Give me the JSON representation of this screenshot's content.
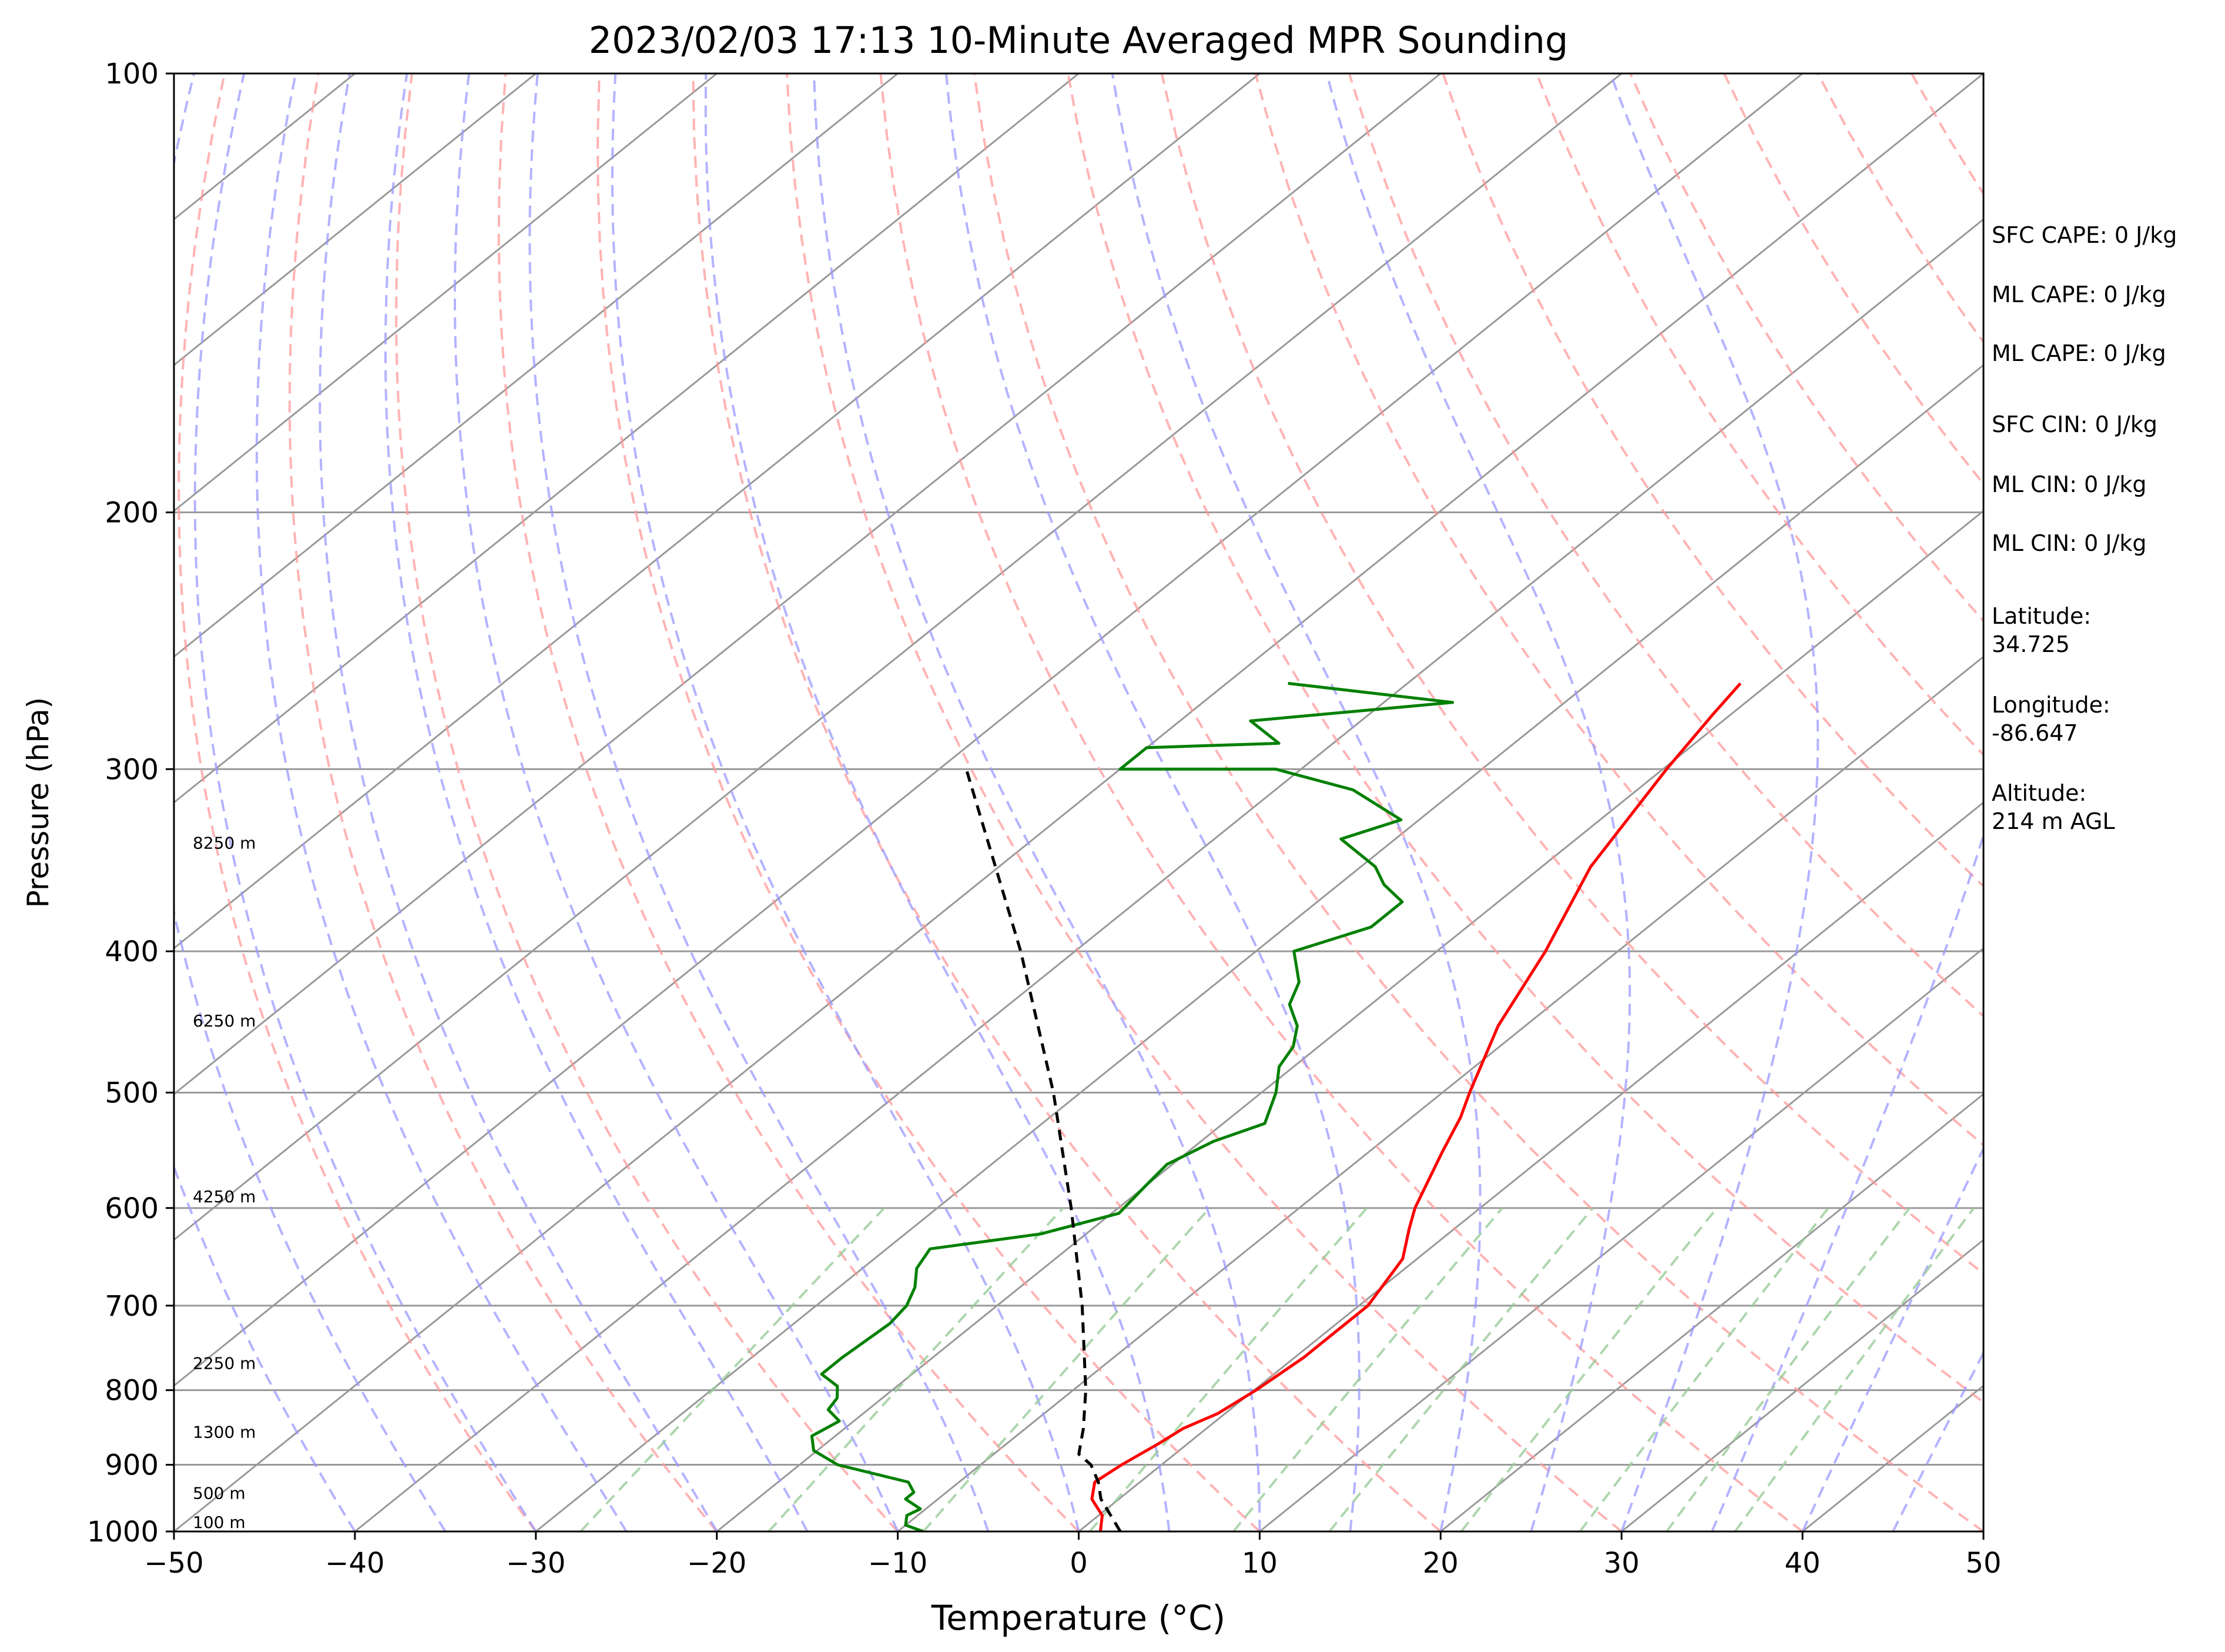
{
  "chart_data": {
    "type": "skew-t",
    "title": "2023/02/03 17:13 10-Minute Averaged MPR Sounding",
    "xlabel": "Temperature (°C)",
    "ylabel": "Pressure (hPa)",
    "xlim": [
      -50,
      50
    ],
    "ylim": [
      1000,
      100
    ],
    "y_scale": "log",
    "x_ticks": [
      -50,
      -40,
      -30,
      -20,
      -10,
      0,
      10,
      20,
      30,
      40,
      50
    ],
    "x_tick_labels": [
      "−50",
      "−40",
      "−30",
      "−20",
      "−10",
      "0",
      "10",
      "20",
      "30",
      "40",
      "50"
    ],
    "y_ticks": [
      100,
      200,
      300,
      400,
      500,
      600,
      700,
      800,
      900,
      1000
    ],
    "y_tick_labels": [
      "100",
      "200",
      "300",
      "400",
      "500",
      "600",
      "700",
      "800",
      "900",
      "1000"
    ],
    "grid": true,
    "colors": {
      "temperature": "#ff0000",
      "dewpoint": "#008000",
      "parcel": "#000000",
      "dry_adiabats": "#ff9999",
      "moist_adiabats": "#9999ff",
      "mixing_ratio": "#99cc99",
      "isotherms": "#999999"
    },
    "series": [
      {
        "kind": "temperature",
        "points": [
          {
            "p": 1000,
            "t": 1.2
          },
          {
            "p": 975,
            "t": 0.2
          },
          {
            "p": 950,
            "t": -1.5
          },
          {
            "p": 925,
            "t": -2.5
          },
          {
            "p": 900,
            "t": -2.2
          },
          {
            "p": 870,
            "t": -1.6
          },
          {
            "p": 850,
            "t": -1.3
          },
          {
            "p": 830,
            "t": -0.4
          },
          {
            "p": 800,
            "t": 0.1
          },
          {
            "p": 760,
            "t": 0.5
          },
          {
            "p": 730,
            "t": 0.5
          },
          {
            "p": 700,
            "t": 0.5
          },
          {
            "p": 650,
            "t": -0.8
          },
          {
            "p": 620,
            "t": -2.5
          },
          {
            "p": 600,
            "t": -3.6
          },
          {
            "p": 550,
            "t": -5.9
          },
          {
            "p": 520,
            "t": -7.3
          },
          {
            "p": 500,
            "t": -8.5
          },
          {
            "p": 450,
            "t": -11.5
          },
          {
            "p": 400,
            "t": -14.0
          },
          {
            "p": 350,
            "t": -17.3
          },
          {
            "p": 300,
            "t": -19.8
          },
          {
            "p": 275,
            "t": -21.0
          },
          {
            "p": 262,
            "t": -21.6
          }
        ]
      },
      {
        "kind": "dewpoint",
        "points": [
          {
            "p": 1000,
            "t": -8.6
          },
          {
            "p": 990,
            "t": -10.0
          },
          {
            "p": 975,
            "t": -10.6
          },
          {
            "p": 965,
            "t": -10.3
          },
          {
            "p": 950,
            "t": -11.8
          },
          {
            "p": 940,
            "t": -11.8
          },
          {
            "p": 925,
            "t": -12.8
          },
          {
            "p": 900,
            "t": -17.9
          },
          {
            "p": 880,
            "t": -20.2
          },
          {
            "p": 860,
            "t": -21.3
          },
          {
            "p": 840,
            "t": -20.8
          },
          {
            "p": 825,
            "t": -22.2
          },
          {
            "p": 810,
            "t": -22.5
          },
          {
            "p": 795,
            "t": -23.3
          },
          {
            "p": 780,
            "t": -25.0
          },
          {
            "p": 760,
            "t": -25.0
          },
          {
            "p": 720,
            "t": -24.7
          },
          {
            "p": 700,
            "t": -25.0
          },
          {
            "p": 680,
            "t": -25.8
          },
          {
            "p": 660,
            "t": -27.0
          },
          {
            "p": 640,
            "t": -27.6
          },
          {
            "p": 625,
            "t": -22.5
          },
          {
            "p": 605,
            "t": -19.6
          },
          {
            "p": 580,
            "t": -20.0
          },
          {
            "p": 560,
            "t": -20.3
          },
          {
            "p": 540,
            "t": -19.3
          },
          {
            "p": 525,
            "t": -17.7
          },
          {
            "p": 500,
            "t": -19.2
          },
          {
            "p": 480,
            "t": -20.8
          },
          {
            "p": 465,
            "t": -21.4
          },
          {
            "p": 450,
            "t": -22.6
          },
          {
            "p": 435,
            "t": -24.5
          },
          {
            "p": 420,
            "t": -25.5
          },
          {
            "p": 400,
            "t": -27.9
          },
          {
            "p": 385,
            "t": -25.3
          },
          {
            "p": 370,
            "t": -25.3
          },
          {
            "p": 360,
            "t": -27.5
          },
          {
            "p": 350,
            "t": -29.2
          },
          {
            "p": 335,
            "t": -33.0
          },
          {
            "p": 325,
            "t": -31.0
          },
          {
            "p": 310,
            "t": -35.7
          },
          {
            "p": 300,
            "t": -41.4
          },
          {
            "p": 300,
            "t": -50.0
          },
          {
            "p": 290,
            "t": -50.0
          },
          {
            "p": 288,
            "t": -43.0
          },
          {
            "p": 278,
            "t": -46.1
          },
          {
            "p": 270,
            "t": -36.2
          },
          {
            "p": 262,
            "t": -46.6
          }
        ]
      },
      {
        "kind": "parcel",
        "points": [
          {
            "p": 1000,
            "t": 2.3
          },
          {
            "p": 950,
            "t": -1.0
          },
          {
            "p": 925,
            "t": -2.3
          },
          {
            "p": 900,
            "t": -3.9
          },
          {
            "p": 885,
            "t": -5.3
          },
          {
            "p": 850,
            "t": -6.8
          },
          {
            "p": 800,
            "t": -9.3
          },
          {
            "p": 700,
            "t": -15.3
          },
          {
            "p": 600,
            "t": -22.6
          },
          {
            "p": 500,
            "t": -31.5
          },
          {
            "p": 400,
            "t": -43.0
          },
          {
            "p": 300,
            "t": -58.5
          }
        ]
      }
    ],
    "height_labels": [
      {
        "text": "100 m",
        "p": 1000
      },
      {
        "text": "500 m",
        "p": 955
      },
      {
        "text": "1300 m",
        "p": 867
      },
      {
        "text": "2250 m",
        "p": 778
      },
      {
        "text": "4250 m",
        "p": 598
      },
      {
        "text": "6250 m",
        "p": 453
      },
      {
        "text": "8250 m",
        "p": 342
      }
    ],
    "annotations": [
      "SFC CAPE: 0 J/kg",
      "ML CAPE: 0 J/kg",
      "ML CAPE: 0 J/kg",
      "SFC CIN: 0 J/kg",
      "ML CIN: 0 J/kg",
      "ML CIN: 0 J/kg"
    ],
    "location": {
      "latitude_label": "Latitude:",
      "latitude": "34.725",
      "longitude_label": "Longitude:",
      "longitude": "-86.647",
      "altitude_label": "Altitude:",
      "altitude": "214 m AGL"
    }
  }
}
